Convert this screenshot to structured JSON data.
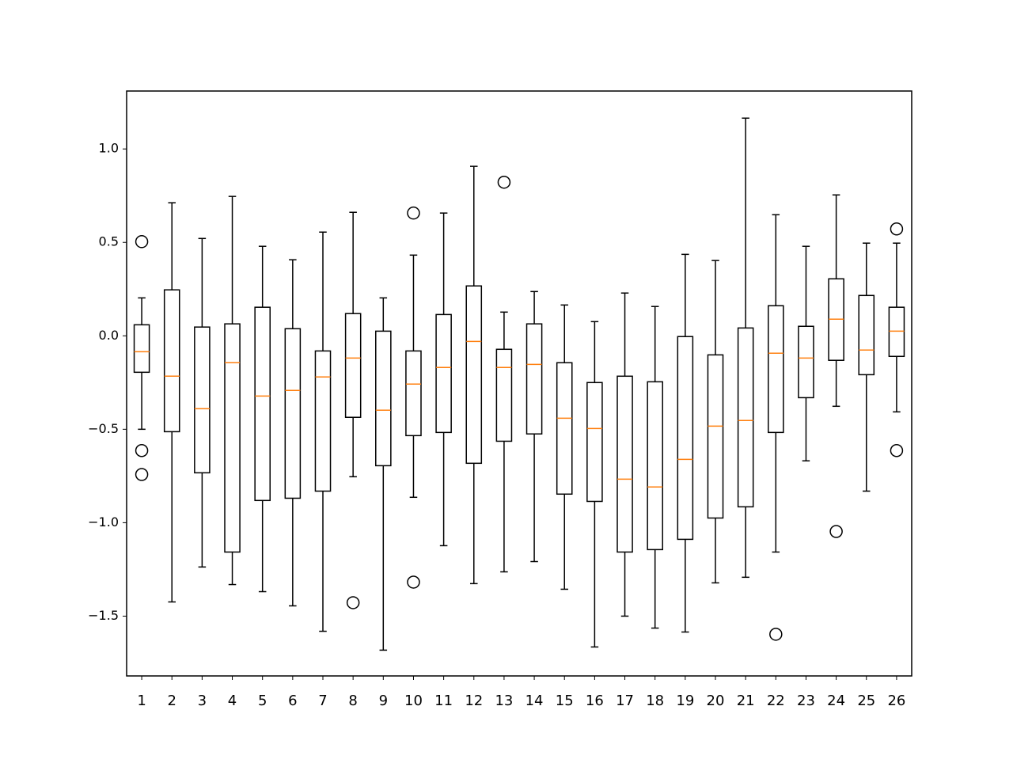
{
  "chart_data": {
    "type": "box",
    "categories": [
      "1",
      "2",
      "3",
      "4",
      "5",
      "6",
      "7",
      "8",
      "9",
      "10",
      "11",
      "12",
      "13",
      "14",
      "15",
      "16",
      "17",
      "18",
      "19",
      "20",
      "21",
      "22",
      "23",
      "24",
      "25",
      "26"
    ],
    "boxes": [
      {
        "low": -0.5,
        "q1": -0.195,
        "median": -0.085,
        "q3": 0.059,
        "high": 0.203,
        "outliers": [
          0.504,
          -0.614,
          -0.742
        ]
      },
      {
        "low": -1.424,
        "q1": -0.513,
        "median": -0.216,
        "q3": 0.246,
        "high": 0.712,
        "outliers": []
      },
      {
        "low": -1.237,
        "q1": -0.733,
        "median": -0.39,
        "q3": 0.047,
        "high": 0.521,
        "outliers": []
      },
      {
        "low": -1.331,
        "q1": -1.157,
        "median": -0.144,
        "q3": 0.064,
        "high": 0.746,
        "outliers": []
      },
      {
        "low": -1.369,
        "q1": -0.881,
        "median": -0.322,
        "q3": 0.153,
        "high": 0.479,
        "outliers": []
      },
      {
        "low": -1.445,
        "q1": -0.869,
        "median": -0.292,
        "q3": 0.038,
        "high": 0.407,
        "outliers": []
      },
      {
        "low": -1.581,
        "q1": -0.831,
        "median": -0.22,
        "q3": -0.081,
        "high": 0.555,
        "outliers": []
      },
      {
        "low": -0.754,
        "q1": -0.436,
        "median": -0.119,
        "q3": 0.119,
        "high": 0.661,
        "outliers": [
          -1.428
        ]
      },
      {
        "low": -1.682,
        "q1": -0.695,
        "median": -0.398,
        "q3": 0.025,
        "high": 0.203,
        "outliers": []
      },
      {
        "low": -0.864,
        "q1": -0.534,
        "median": -0.258,
        "q3": -0.081,
        "high": 0.432,
        "outliers": [
          0.657,
          -1.318
        ]
      },
      {
        "low": -1.123,
        "q1": -0.517,
        "median": -0.169,
        "q3": 0.114,
        "high": 0.657,
        "outliers": []
      },
      {
        "low": -1.326,
        "q1": -0.682,
        "median": -0.03,
        "q3": 0.267,
        "high": 0.907,
        "outliers": []
      },
      {
        "low": -1.263,
        "q1": -0.564,
        "median": -0.169,
        "q3": -0.072,
        "high": 0.127,
        "outliers": [
          0.822
        ]
      },
      {
        "low": -1.208,
        "q1": -0.525,
        "median": -0.153,
        "q3": 0.064,
        "high": 0.237,
        "outliers": []
      },
      {
        "low": -1.356,
        "q1": -0.847,
        "median": -0.441,
        "q3": -0.144,
        "high": 0.165,
        "outliers": []
      },
      {
        "low": -1.665,
        "q1": -0.886,
        "median": -0.496,
        "q3": -0.25,
        "high": 0.076,
        "outliers": []
      },
      {
        "low": -1.5,
        "q1": -1.157,
        "median": -0.767,
        "q3": -0.216,
        "high": 0.229,
        "outliers": []
      },
      {
        "low": -1.564,
        "q1": -1.144,
        "median": -0.809,
        "q3": -0.246,
        "high": 0.157,
        "outliers": []
      },
      {
        "low": -1.585,
        "q1": -1.089,
        "median": -0.661,
        "q3": -0.004,
        "high": 0.436,
        "outliers": []
      },
      {
        "low": -1.322,
        "q1": -0.975,
        "median": -0.483,
        "q3": -0.102,
        "high": 0.403,
        "outliers": []
      },
      {
        "low": -1.292,
        "q1": -0.915,
        "median": -0.453,
        "q3": 0.042,
        "high": 1.165,
        "outliers": []
      },
      {
        "low": -1.157,
        "q1": -0.517,
        "median": -0.093,
        "q3": 0.161,
        "high": 0.648,
        "outliers": [
          -1.597
        ]
      },
      {
        "low": -0.669,
        "q1": -0.331,
        "median": -0.119,
        "q3": 0.051,
        "high": 0.479,
        "outliers": []
      },
      {
        "low": -0.377,
        "q1": -0.131,
        "median": 0.089,
        "q3": 0.305,
        "high": 0.754,
        "outliers": [
          -1.047
        ]
      },
      {
        "low": -0.831,
        "q1": -0.208,
        "median": -0.076,
        "q3": 0.216,
        "high": 0.496,
        "outliers": []
      },
      {
        "low": -0.407,
        "q1": -0.11,
        "median": 0.025,
        "q3": 0.153,
        "high": 0.496,
        "outliers": [
          0.572,
          -0.614
        ]
      }
    ],
    "color": "#000000",
    "median_color": "#ff7f0e",
    "ylim": [
      -1.82,
      1.31
    ],
    "yticks": [
      {
        "value": -1.5,
        "label": "−1.5"
      },
      {
        "value": -1.0,
        "label": "−1.0"
      },
      {
        "value": -0.5,
        "label": "−0.5"
      },
      {
        "value": 0,
        "label": "0.0"
      },
      0.5,
      {
        "value": 1.0,
        "label": "1.0"
      }
    ],
    "grid": false
  }
}
